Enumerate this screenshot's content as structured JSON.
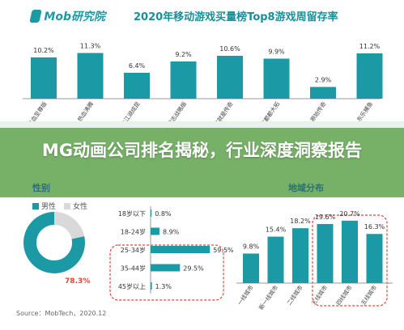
{
  "header": {
    "logo_text": "Mob研究院",
    "title": "2020年移动游戏买量榜Top8游戏周留存率"
  },
  "banner": {
    "title": "MG动画公司排名揭秘，行业深度洞察报告"
  },
  "sections": {
    "gender": "性别",
    "region": "地域分布"
  },
  "legend": {
    "male": "男性",
    "female": "女性"
  },
  "source": "Source：MobTech，2020.12",
  "colors": {
    "teal": "#1b9aa6",
    "pie_light": "#d9d9d9",
    "red": "#e0463a",
    "banner": "#68a858"
  },
  "chart_data": [
    {
      "type": "bar",
      "title": "2020年移动游戏买量榜Top8游戏周留存率",
      "categories": [
        "热血至尊版",
        "热血沸腾",
        "东江湖成昆",
        "三国志战略版",
        "这就是传奇",
        "这都都大拓",
        "原始传奇",
        "东乐捕鱼"
      ],
      "values": [
        10.2,
        11.3,
        6.4,
        9.2,
        10.6,
        9.9,
        2.9,
        11.2
      ],
      "value_labels": [
        "10.2%",
        "11.3%",
        "6.4%",
        "9.2%",
        "10.6%",
        "9.9%",
        "2.9%",
        "11.2%"
      ],
      "ylim": [
        0,
        12
      ]
    },
    {
      "type": "pie",
      "title": "性别",
      "categories": [
        "男性",
        "女性"
      ],
      "values": [
        78.3,
        21.7
      ],
      "value_labels": [
        "78.3%",
        ""
      ]
    },
    {
      "type": "bar",
      "orientation": "horizontal",
      "categories": [
        "18岁以下",
        "18-24岁",
        "25-34岁",
        "35-44岁",
        "45岁以上"
      ],
      "values": [
        0.8,
        8.9,
        59.5,
        29.5,
        1.3
      ],
      "value_labels": [
        "0.8%",
        "8.9%",
        "59.5%",
        "29.5%",
        "1.3%"
      ],
      "highlighted": [
        "25-34岁",
        "35-44岁",
        "45岁以上"
      ],
      "xlim": [
        0,
        65
      ]
    },
    {
      "type": "bar",
      "title": "地域分布",
      "categories": [
        "一线城市",
        "新一线城市",
        "二线城市",
        "三线城市",
        "四线城市",
        "五线城市"
      ],
      "values": [
        9.8,
        15.4,
        18.2,
        19.6,
        20.7,
        16.3
      ],
      "value_labels": [
        "9.8%",
        "15.4%",
        "18.2%",
        "19.6%",
        "20.7%",
        "16.3%"
      ],
      "highlighted": [
        "三线城市",
        "四线城市",
        "五线城市"
      ],
      "ylim": [
        0,
        22
      ]
    }
  ]
}
